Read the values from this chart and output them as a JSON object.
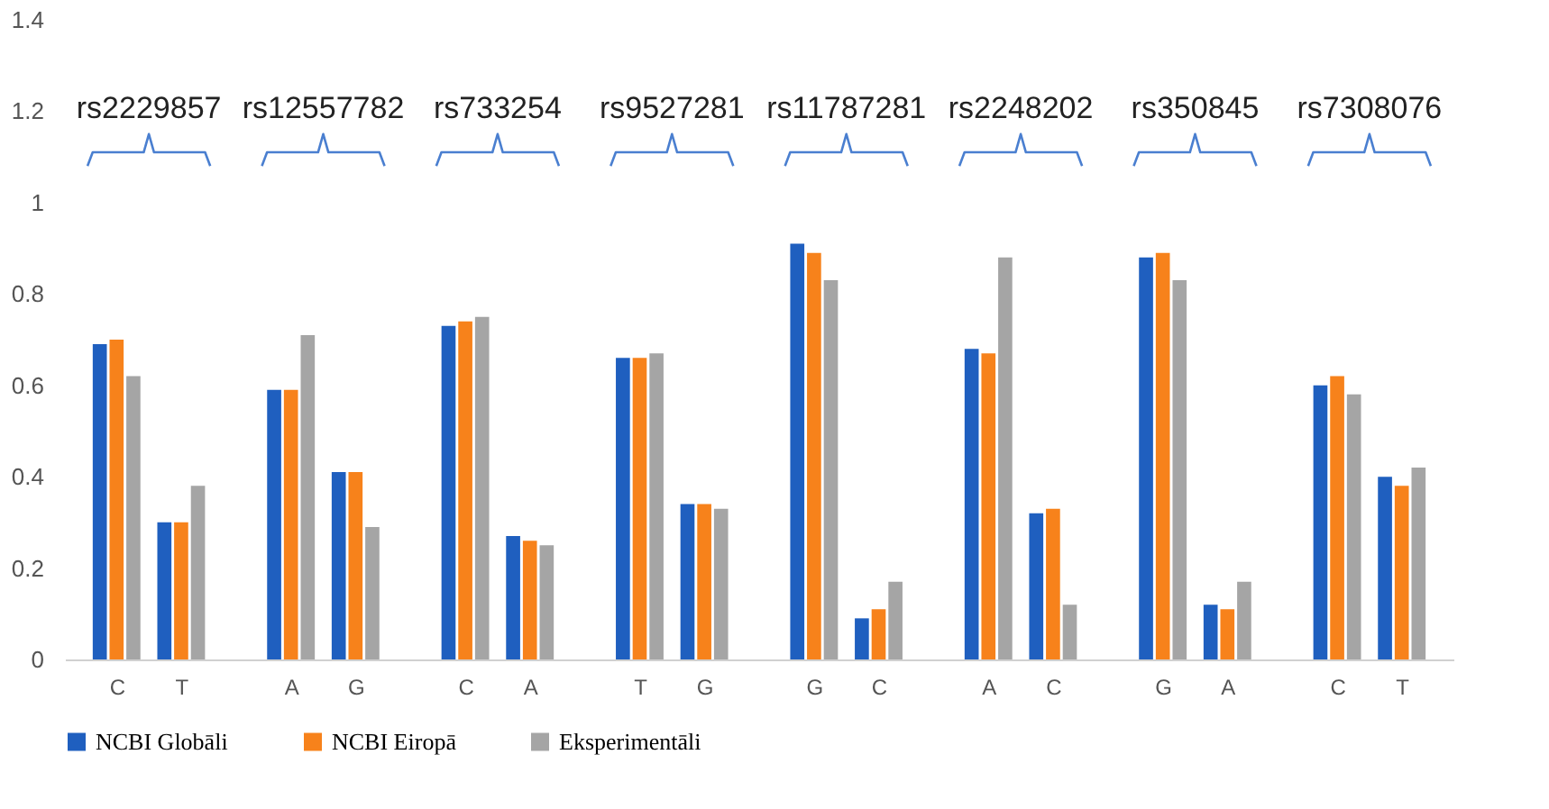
{
  "chart_data": {
    "type": "bar",
    "categories": [
      "C",
      "T",
      "A",
      "G",
      "C",
      "A",
      "T",
      "G",
      "G",
      "C",
      "A",
      "C",
      "G",
      "A",
      "C",
      "T"
    ],
    "series": [
      {
        "name": "NCBI Globāli",
        "color": "#1f5fbf",
        "values": [
          0.69,
          0.3,
          0.59,
          0.41,
          0.73,
          0.27,
          0.66,
          0.34,
          0.91,
          0.09,
          0.68,
          0.32,
          0.88,
          0.12,
          0.6,
          0.4
        ]
      },
      {
        "name": "NCBI Eiropā",
        "color": "#f7821b",
        "values": [
          0.7,
          0.3,
          0.59,
          0.41,
          0.74,
          0.26,
          0.66,
          0.34,
          0.89,
          0.11,
          0.67,
          0.33,
          0.89,
          0.11,
          0.62,
          0.38
        ]
      },
      {
        "name": "Eksperimentāli",
        "color": "#a5a5a5",
        "values": [
          0.62,
          0.38,
          0.71,
          0.29,
          0.75,
          0.25,
          0.67,
          0.33,
          0.83,
          0.17,
          0.88,
          0.12,
          0.83,
          0.17,
          0.58,
          0.42
        ]
      }
    ],
    "annotations": [
      "rs2229857",
      "rs12557782",
      "rs733254",
      "rs9527281",
      "rs11787281",
      "rs2248202",
      "rs350845",
      "rs7308076"
    ],
    "ylim": [
      0,
      1.4
    ],
    "yticks": [
      0,
      0.2,
      0.4,
      0.6,
      0.8,
      1,
      1.2,
      1.4
    ],
    "grid": false,
    "legend": "bottom"
  }
}
